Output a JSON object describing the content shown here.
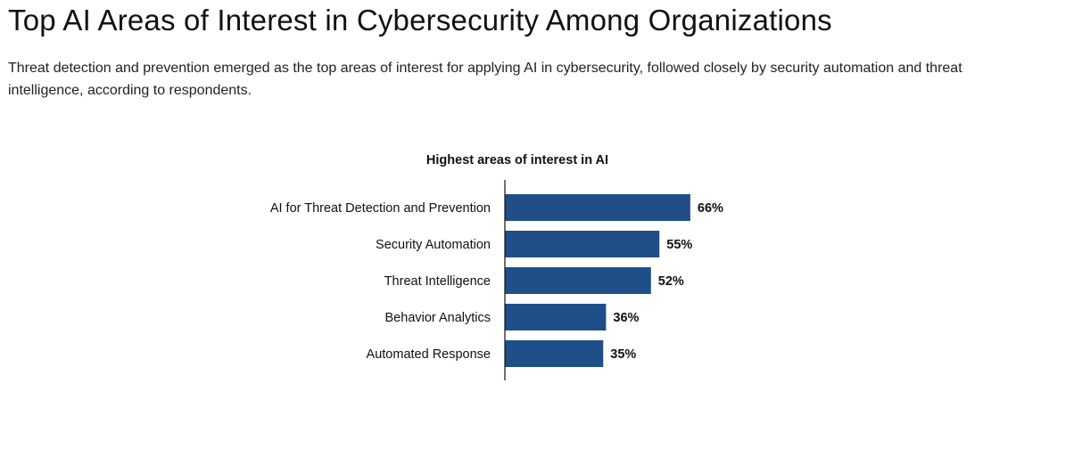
{
  "header": {
    "title": "Top AI Areas of Interest in Cybersecurity Among Organizations",
    "subtitle": "Threat detection and prevention emerged as the top areas of interest for applying AI in cybersecurity, followed closely by security automation and threat intelligence, according to respondents."
  },
  "chart_data": {
    "type": "bar",
    "orientation": "horizontal",
    "title": "Highest areas of interest in AI",
    "categories": [
      "AI for Threat Detection and Prevention",
      "Security Automation",
      "Threat Intelligence",
      "Behavior Analytics",
      "Automated Response"
    ],
    "values": [
      66,
      55,
      52,
      36,
      35
    ],
    "data_labels": [
      "66%",
      "55%",
      "52%",
      "36%",
      "35%"
    ],
    "xlabel": "",
    "ylabel": "",
    "xlim": [
      0,
      100
    ],
    "grid": false,
    "color": "#1f4e89"
  }
}
